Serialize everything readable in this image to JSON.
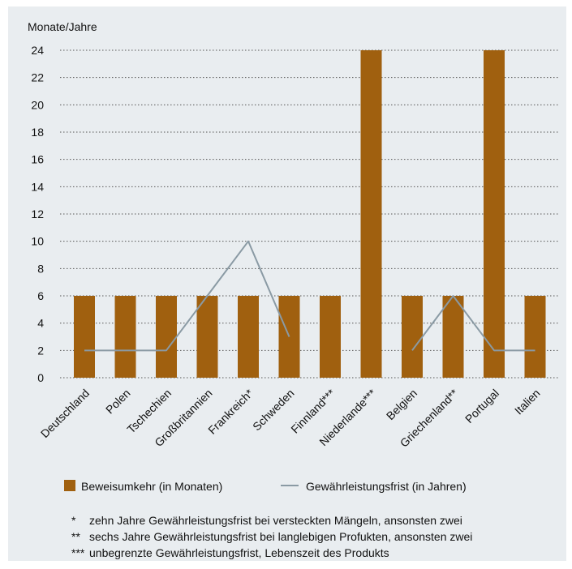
{
  "chart_data": {
    "type": "bar",
    "ylabel": "Monate/Jahre",
    "ylim": [
      0,
      24
    ],
    "yticks": [
      0,
      2,
      4,
      6,
      8,
      10,
      12,
      14,
      16,
      18,
      20,
      22,
      24
    ],
    "grid": "horizontal dotted",
    "legend_position": "bottom",
    "categories": [
      "Deutschland",
      "Polen",
      "Tschechien",
      "Großbritannien",
      "Frankreich*",
      "Schweden",
      "Finnland***",
      "Niederlande***",
      "Belgien",
      "Griechenland**",
      "Portugal",
      "Italien"
    ],
    "series": [
      {
        "name": "Beweisumkehr (in Monaten)",
        "type": "bar",
        "color": "#a0600f",
        "values": [
          6,
          6,
          6,
          6,
          6,
          6,
          6,
          24,
          6,
          6,
          24,
          6
        ]
      },
      {
        "name": "Gewährleistungsfrist (in Jahren)",
        "type": "line",
        "color": "#8a9aa4",
        "values": [
          2,
          2,
          2,
          6,
          10,
          3,
          null,
          null,
          2,
          6,
          2,
          2
        ]
      }
    ]
  },
  "footnotes": [
    {
      "mark": "*",
      "text": "zehn Jahre Gewährleistungsfrist bei versteckten Mängeln, ansonsten zwei"
    },
    {
      "mark": "**",
      "text": "sechs Jahre Gewährleistungsfrist bei langlebigen Profukten, ansonsten zwei"
    },
    {
      "mark": "***",
      "text": "unbegrenzte Gewährleistungsfrist, Lebenszeit des Produkts"
    }
  ]
}
